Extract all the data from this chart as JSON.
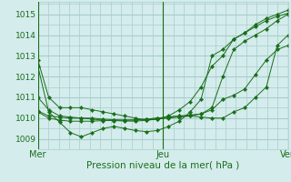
{
  "xlabel": "Pression niveau de la mer( hPa )",
  "bg_color": "#d4ecec",
  "grid_color": "#a8cccc",
  "line_color": "#1a6e1a",
  "marker_color": "#1a6e1a",
  "yticks": [
    1009,
    1010,
    1011,
    1012,
    1013,
    1014,
    1015
  ],
  "ylim": [
    1008.6,
    1015.6
  ],
  "xlim": [
    0,
    48
  ],
  "xtick_positions": [
    0,
    24,
    48
  ],
  "xtick_labels": [
    "Mer",
    "Jeu",
    "Ven"
  ],
  "series": [
    [
      1012.8,
      1011.0,
      1010.5,
      1010.5,
      1010.5,
      1010.4,
      1010.3,
      1010.2,
      1010.1,
      1010.0,
      1009.9,
      1009.95,
      1010.1,
      1010.4,
      1010.8,
      1011.5,
      1012.5,
      1013.0,
      1013.8,
      1014.1,
      1014.5,
      1014.8,
      1015.0,
      1015.2
    ],
    [
      1012.5,
      1010.3,
      1009.8,
      1009.3,
      1009.1,
      1009.3,
      1009.5,
      1009.6,
      1009.5,
      1009.4,
      1009.35,
      1009.4,
      1009.6,
      1009.85,
      1010.3,
      1010.9,
      1013.0,
      1013.3,
      1013.8,
      1014.1,
      1014.4,
      1014.7,
      1014.9,
      1015.05
    ],
    [
      1011.0,
      1010.4,
      1010.1,
      1010.05,
      1010.0,
      1009.95,
      1009.9,
      1009.88,
      1009.86,
      1009.85,
      1009.9,
      1009.95,
      1010.0,
      1010.05,
      1010.1,
      1010.2,
      1010.5,
      1012.0,
      1013.3,
      1013.7,
      1014.0,
      1014.3,
      1014.7,
      1015.0
    ],
    [
      1010.35,
      1010.1,
      1010.05,
      1010.0,
      1010.0,
      1010.0,
      1009.95,
      1009.92,
      1009.9,
      1009.9,
      1009.95,
      1010.0,
      1010.05,
      1010.1,
      1010.15,
      1010.2,
      1010.4,
      1010.9,
      1011.1,
      1011.4,
      1012.1,
      1012.8,
      1013.3,
      1013.5
    ],
    [
      1010.3,
      1010.0,
      1009.9,
      1009.85,
      1009.85,
      1009.85,
      1009.88,
      1009.9,
      1009.9,
      1009.92,
      1009.95,
      1010.0,
      1010.05,
      1010.1,
      1010.1,
      1010.05,
      1010.0,
      1010.0,
      1010.3,
      1010.5,
      1011.0,
      1011.5,
      1013.5,
      1014.0
    ]
  ],
  "n_points": 24,
  "minor_xticks_step": 2,
  "minor_yticks_step": 0.5
}
